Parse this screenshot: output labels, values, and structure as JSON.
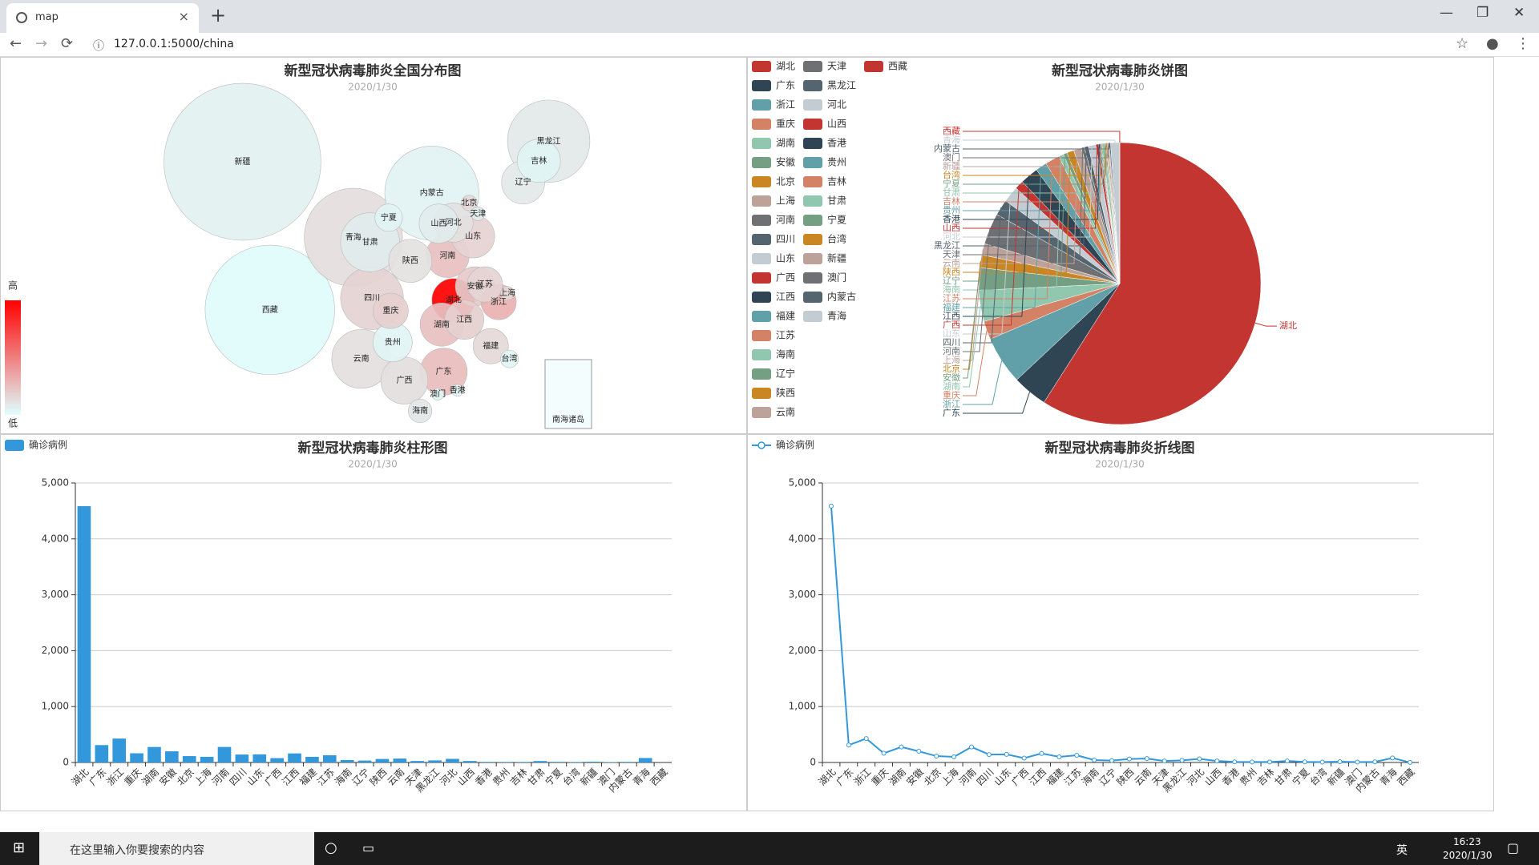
{
  "browser": {
    "tab_title": "map",
    "url": "127.0.0.1:5000/china"
  },
  "taskbar": {
    "search_placeholder": "在这里输入你要搜索的内容",
    "ime": "英",
    "time": "16:23",
    "date": "2020/1/30"
  },
  "chart_data": [
    {
      "type": "map",
      "title": "新型冠状病毒肺炎全国分布图",
      "subtitle": "2020/1/30",
      "categories": [
        "湖北",
        "广东",
        "浙江",
        "重庆",
        "湖南",
        "安徽",
        "北京",
        "上海",
        "河南",
        "四川",
        "山东",
        "广西",
        "江西",
        "福建",
        "江苏",
        "海南",
        "辽宁",
        "陕西",
        "云南",
        "天津",
        "黑龙江",
        "河北",
        "山西",
        "香港",
        "贵州",
        "吉林",
        "甘肃",
        "宁夏",
        "台湾",
        "新疆",
        "澳门",
        "内蒙古",
        "青海",
        "西藏"
      ],
      "values": [
        4586,
        311,
        428,
        165,
        277,
        200,
        114,
        101,
        278,
        142,
        145,
        78,
        162,
        101,
        129,
        43,
        34,
        63,
        70,
        27,
        37,
        65,
        27,
        10,
        9,
        9,
        26,
        11,
        8,
        14,
        7,
        11,
        80,
        1
      ],
      "visual_map": {
        "high_label": "高",
        "low_label": "低",
        "colors": [
          "#e0ffff",
          "#ff0000"
        ]
      },
      "inset_label": "南海诸岛"
    },
    {
      "type": "pie",
      "title": "新型冠状病毒肺炎饼图",
      "subtitle": "2020/1/30",
      "categories": [
        "湖北",
        "广东",
        "浙江",
        "重庆",
        "湖南",
        "安徽",
        "北京",
        "上海",
        "河南",
        "四川",
        "山东",
        "广西",
        "江西",
        "福建",
        "江苏",
        "海南",
        "辽宁",
        "陕西",
        "云南",
        "天津",
        "黑龙江",
        "河北",
        "山西",
        "香港",
        "贵州",
        "吉林",
        "甘肃",
        "宁夏",
        "台湾",
        "新疆",
        "澳门",
        "内蒙古",
        "青海",
        "西藏"
      ],
      "values": [
        4586,
        311,
        428,
        165,
        277,
        200,
        114,
        101,
        278,
        142,
        145,
        78,
        162,
        101,
        129,
        43,
        34,
        63,
        70,
        27,
        37,
        65,
        27,
        10,
        9,
        9,
        26,
        11,
        8,
        14,
        7,
        11,
        80,
        1
      ],
      "colors": [
        "#c23531",
        "#2f4554",
        "#61a0a8",
        "#d48265",
        "#91c7ae",
        "#749f83",
        "#ca8622",
        "#bda29a",
        "#6e7074",
        "#546570",
        "#c4ccd3"
      ]
    },
    {
      "type": "bar",
      "title": "新型冠状病毒肺炎柱形图",
      "subtitle": "2020/1/30",
      "categories": [
        "湖北",
        "广东",
        "浙江",
        "重庆",
        "湖南",
        "安徽",
        "北京",
        "上海",
        "河南",
        "四川",
        "山东",
        "广西",
        "江西",
        "福建",
        "江苏",
        "海南",
        "辽宁",
        "陕西",
        "云南",
        "天津",
        "黑龙江",
        "河北",
        "山西",
        "香港",
        "贵州",
        "吉林",
        "甘肃",
        "宁夏",
        "台湾",
        "新疆",
        "澳门",
        "内蒙古",
        "青海",
        "西藏"
      ],
      "series": [
        {
          "name": "确诊病例",
          "color": "#3398db",
          "values": [
            4586,
            311,
            428,
            165,
            277,
            200,
            114,
            101,
            278,
            142,
            145,
            78,
            162,
            101,
            129,
            43,
            34,
            63,
            70,
            27,
            37,
            65,
            27,
            10,
            9,
            9,
            26,
            11,
            8,
            14,
            7,
            11,
            80,
            1
          ]
        }
      ],
      "ylim": [
        0,
        5000
      ],
      "yticks": [
        0,
        {
          "value": 1000,
          "label": "1,000"
        },
        {
          "value": 2000,
          "label": "2,000"
        },
        {
          "value": 3000,
          "label": "3,000"
        },
        {
          "value": 4000,
          "label": "4,000"
        },
        {
          "value": 5000,
          "label": "5,000"
        }
      ],
      "grid": true
    },
    {
      "type": "line",
      "title": "新型冠状病毒肺炎折线图",
      "subtitle": "2020/1/30",
      "categories": [
        "湖北",
        "广东",
        "浙江",
        "重庆",
        "湖南",
        "安徽",
        "北京",
        "上海",
        "河南",
        "四川",
        "山东",
        "广西",
        "江西",
        "福建",
        "江苏",
        "海南",
        "辽宁",
        "陕西",
        "云南",
        "天津",
        "黑龙江",
        "河北",
        "山西",
        "香港",
        "贵州",
        "吉林",
        "甘肃",
        "宁夏",
        "台湾",
        "新疆",
        "澳门",
        "内蒙古",
        "青海",
        "西藏"
      ],
      "series": [
        {
          "name": "确诊病例",
          "color": "#3398db",
          "values": [
            4586,
            311,
            428,
            165,
            277,
            200,
            114,
            101,
            278,
            142,
            145,
            78,
            162,
            101,
            129,
            43,
            34,
            63,
            70,
            27,
            37,
            65,
            27,
            10,
            9,
            9,
            26,
            11,
            8,
            14,
            7,
            11,
            80,
            1
          ]
        }
      ],
      "ylim": [
        0,
        5000
      ],
      "yticks": [
        0,
        {
          "value": 1000,
          "label": "1,000"
        },
        {
          "value": 2000,
          "label": "2,000"
        },
        {
          "value": 3000,
          "label": "3,000"
        },
        {
          "value": 4000,
          "label": "4,000"
        },
        {
          "value": 5000,
          "label": "5,000"
        }
      ],
      "grid": true
    }
  ]
}
